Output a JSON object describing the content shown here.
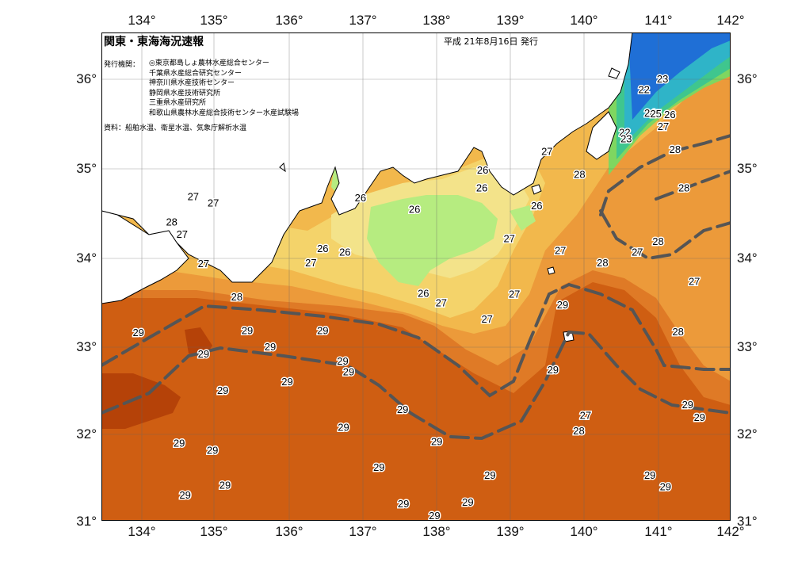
{
  "header": {
    "title": "関東・東海海況速報",
    "date": "平成 21年8月16日 発行"
  },
  "issuer": {
    "label": "発行機関：",
    "orgs": [
      "◎東京都島しょ農林水産総合センター",
      "千葉県水産総合研究センター",
      "神奈川県水産技術センター",
      "静岡県水産技術研究所",
      "三重県水産研究所",
      "和歌山県農林水産総合技術センター水産試験場"
    ]
  },
  "source": "資料：船舶水温、衛星水温、気象庁解析水温",
  "axes": {
    "lon_labels": [
      "134°",
      "135°",
      "136°",
      "137°",
      "138°",
      "139°",
      "140°",
      "141°",
      "142°"
    ],
    "lat_labels": [
      "36°",
      "35°",
      "34°",
      "33°",
      "32°",
      "31°"
    ]
  },
  "colors": {
    "t22": "#1f6fd6",
    "t23": "#2fb4c8",
    "t24": "#3fc68e",
    "t25": "#7fd660",
    "t26": "#b6ec80",
    "t27_low": "#f3e38a",
    "t27": "#f4d36a",
    "t28_low": "#f2b84c",
    "t28": "#ec9a3a",
    "t29_low": "#df7a26",
    "t29": "#cf5e12",
    "t30": "#b54208",
    "land": "#ffffff",
    "front": "#555555"
  },
  "temperature_labels": [
    {
      "text": "23",
      "lon": 141.08,
      "lat": 35.94
    },
    {
      "text": "22",
      "lon": 140.83,
      "lat": 35.82
    },
    {
      "text": "24",
      "lon": 140.91,
      "lat": 35.56
    },
    {
      "text": "25",
      "lon": 140.99,
      "lat": 35.55
    },
    {
      "text": "26",
      "lon": 141.18,
      "lat": 35.54
    },
    {
      "text": "27",
      "lon": 141.09,
      "lat": 35.41
    },
    {
      "text": "22",
      "lon": 140.57,
      "lat": 35.34
    },
    {
      "text": "23",
      "lon": 140.59,
      "lat": 35.27
    },
    {
      "text": "28",
      "lon": 141.25,
      "lat": 35.15
    },
    {
      "text": "28",
      "lon": 141.37,
      "lat": 34.72
    },
    {
      "text": "27",
      "lon": 139.52,
      "lat": 35.13
    },
    {
      "text": "28",
      "lon": 139.96,
      "lat": 34.87
    },
    {
      "text": "26",
      "lon": 138.65,
      "lat": 34.92
    },
    {
      "text": "26",
      "lon": 138.64,
      "lat": 34.72
    },
    {
      "text": "26",
      "lon": 137.0,
      "lat": 34.61
    },
    {
      "text": "26",
      "lon": 137.73,
      "lat": 34.48
    },
    {
      "text": "26",
      "lon": 139.38,
      "lat": 34.52
    },
    {
      "text": "27",
      "lon": 134.74,
      "lat": 34.62
    },
    {
      "text": "28",
      "lon": 134.45,
      "lat": 34.34
    },
    {
      "text": "27",
      "lon": 134.59,
      "lat": 34.2
    },
    {
      "text": "27",
      "lon": 135.01,
      "lat": 34.55
    },
    {
      "text": "27",
      "lon": 139.01,
      "lat": 34.15
    },
    {
      "text": "27",
      "lon": 139.7,
      "lat": 34.02
    },
    {
      "text": "27",
      "lon": 140.74,
      "lat": 34.0
    },
    {
      "text": "28",
      "lon": 141.02,
      "lat": 34.12
    },
    {
      "text": "28",
      "lon": 140.27,
      "lat": 33.88
    },
    {
      "text": "27",
      "lon": 141.51,
      "lat": 33.67
    },
    {
      "text": "26",
      "lon": 136.49,
      "lat": 34.04
    },
    {
      "text": "26",
      "lon": 136.79,
      "lat": 34.0
    },
    {
      "text": "27",
      "lon": 136.33,
      "lat": 33.88
    },
    {
      "text": "27",
      "lon": 134.88,
      "lat": 33.87
    },
    {
      "text": "28",
      "lon": 135.33,
      "lat": 33.5
    },
    {
      "text": "26",
      "lon": 137.85,
      "lat": 33.54
    },
    {
      "text": "27",
      "lon": 138.09,
      "lat": 33.43
    },
    {
      "text": "27",
      "lon": 139.08,
      "lat": 33.53
    },
    {
      "text": "27",
      "lon": 138.71,
      "lat": 33.25
    },
    {
      "text": "29",
      "lon": 139.73,
      "lat": 33.41
    },
    {
      "text": "29",
      "lon": 134.0,
      "lat": 33.1
    },
    {
      "text": "29",
      "lon": 135.47,
      "lat": 33.12
    },
    {
      "text": "29",
      "lon": 136.49,
      "lat": 33.12
    },
    {
      "text": "28",
      "lon": 141.29,
      "lat": 33.11
    },
    {
      "text": "29",
      "lon": 134.88,
      "lat": 32.86
    },
    {
      "text": "29",
      "lon": 135.78,
      "lat": 32.94
    },
    {
      "text": "29",
      "lon": 136.76,
      "lat": 32.78
    },
    {
      "text": "29",
      "lon": 136.84,
      "lat": 32.66
    },
    {
      "text": "29",
      "lon": 139.6,
      "lat": 32.68
    },
    {
      "text": "29",
      "lon": 136.01,
      "lat": 32.55
    },
    {
      "text": "29",
      "lon": 135.14,
      "lat": 32.45
    },
    {
      "text": "29",
      "lon": 141.42,
      "lat": 32.29
    },
    {
      "text": "29",
      "lon": 141.58,
      "lat": 32.15
    },
    {
      "text": "29",
      "lon": 137.57,
      "lat": 32.24
    },
    {
      "text": "27",
      "lon": 140.04,
      "lat": 32.17
    },
    {
      "text": "28",
      "lon": 139.95,
      "lat": 32.0
    },
    {
      "text": "29",
      "lon": 136.77,
      "lat": 32.04
    },
    {
      "text": "29",
      "lon": 138.03,
      "lat": 31.88
    },
    {
      "text": "29",
      "lon": 134.55,
      "lat": 31.86
    },
    {
      "text": "29",
      "lon": 135.0,
      "lat": 31.78
    },
    {
      "text": "29",
      "lon": 137.25,
      "lat": 31.59
    },
    {
      "text": "29",
      "lon": 138.75,
      "lat": 31.5
    },
    {
      "text": "29",
      "lon": 140.91,
      "lat": 31.5
    },
    {
      "text": "29",
      "lon": 141.12,
      "lat": 31.37
    },
    {
      "text": "29",
      "lon": 135.17,
      "lat": 31.39
    },
    {
      "text": "29",
      "lon": 134.63,
      "lat": 31.28
    },
    {
      "text": "29",
      "lon": 137.58,
      "lat": 31.18
    },
    {
      "text": "29",
      "lon": 138.45,
      "lat": 31.2
    },
    {
      "text": "29",
      "lon": 138.0,
      "lat": 31.05
    }
  ]
}
